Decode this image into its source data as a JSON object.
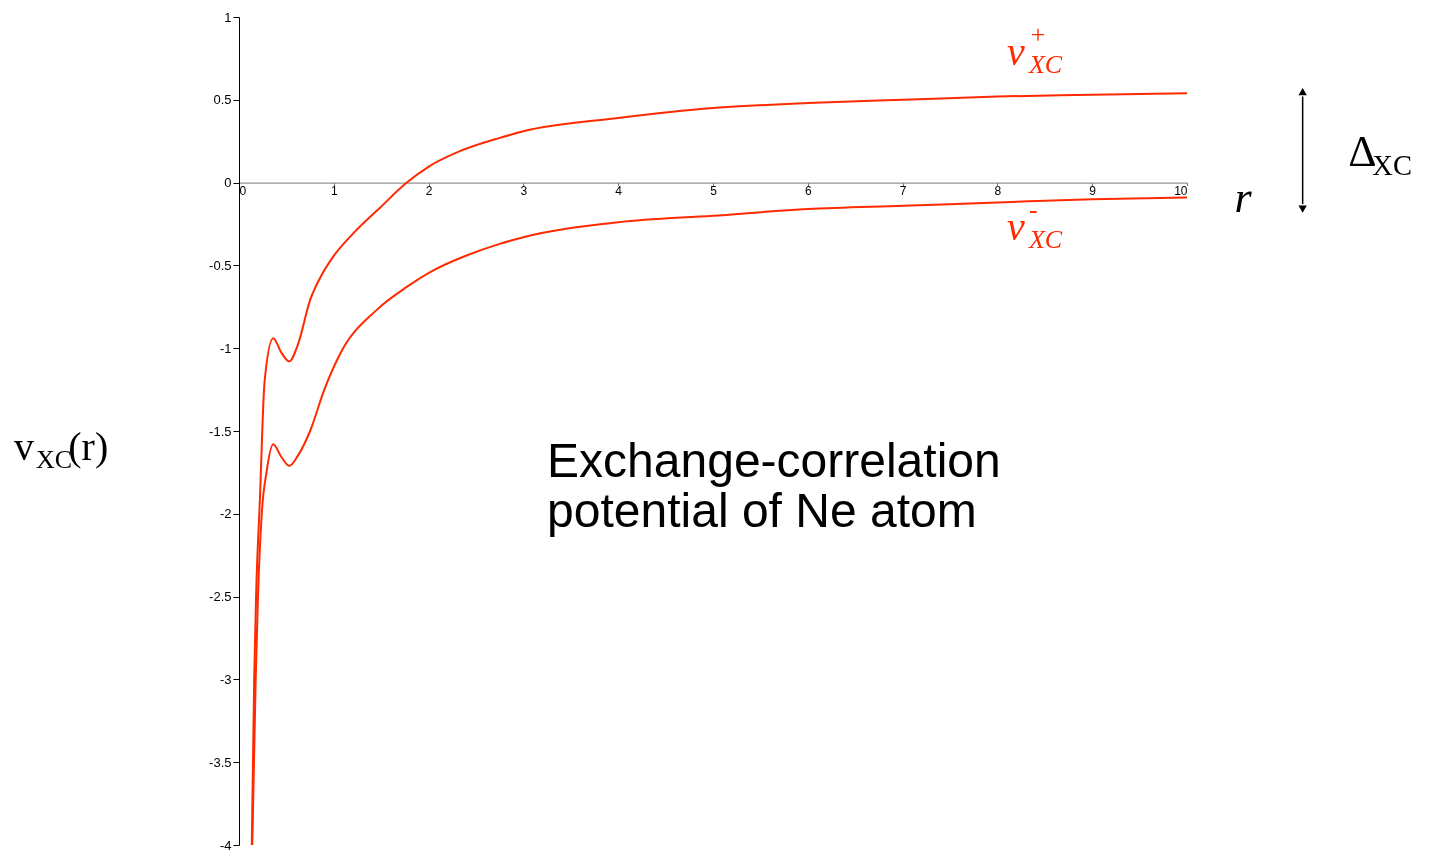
{
  "chart_data": {
    "type": "line",
    "xlabel": "r",
    "ylabel": "v$_{XC}$(r)",
    "xlim": [
      0,
      10
    ],
    "ylim": [
      -4,
      1
    ],
    "xticks": [
      0,
      1,
      2,
      3,
      4,
      5,
      6,
      7,
      8,
      9,
      10
    ],
    "yticks": [
      -4,
      -3.5,
      -3,
      -2.5,
      -2,
      -1.5,
      -1,
      -0.5,
      0,
      0.5,
      1
    ],
    "grid": false,
    "marker": "none",
    "line_style": "solid",
    "series": [
      {
        "name": "v$^{+}$$_{XC}$",
        "color": "#ff2a00",
        "x": [
          0.135,
          0.16,
          0.18,
          0.22,
          0.27,
          0.36,
          0.45,
          0.53,
          0.62,
          0.75,
          0.87,
          0.99,
          1.2,
          1.49,
          1.77,
          2.01,
          2.33,
          2.75,
          3,
          4,
          5,
          6,
          7,
          8,
          9,
          10
        ],
        "values": [
          -4,
          -3,
          -2.5,
          -1.92,
          -1.2,
          -0.94,
          -1.03,
          -1.08,
          -0.98,
          -0.71,
          -0.56,
          -0.45,
          -0.31,
          -0.15,
          0,
          0.1,
          0.19,
          0.27,
          0.31,
          0.39,
          0.45,
          0.48,
          0.5,
          0.52,
          0.53,
          0.54
        ]
      },
      {
        "name": "v$^{-}$$_{XC}$",
        "color": "#ff2a00",
        "x": [
          0.14,
          0.176,
          0.2,
          0.24,
          0.29,
          0.36,
          0.45,
          0.53,
          0.62,
          0.75,
          0.9,
          1.07,
          1.45,
          1.77,
          2.05,
          2.4,
          2.75,
          3,
          4,
          5,
          6,
          7,
          8,
          9,
          10
        ],
        "values": [
          -4,
          -3,
          -2.5,
          -2,
          -1.75,
          -1.58,
          -1.66,
          -1.71,
          -1.65,
          -1.5,
          -1.25,
          -1.03,
          -0.77,
          -0.63,
          -0.53,
          -0.44,
          -0.37,
          -0.33,
          -0.24,
          -0.2,
          -0.16,
          -0.14,
          -0.12,
          -0.1,
          -0.09
        ]
      }
    ],
    "annotations": [
      "Exchange-correlation\npotential of Ne atom",
      "Δ$_{XC}$"
    ]
  }
}
